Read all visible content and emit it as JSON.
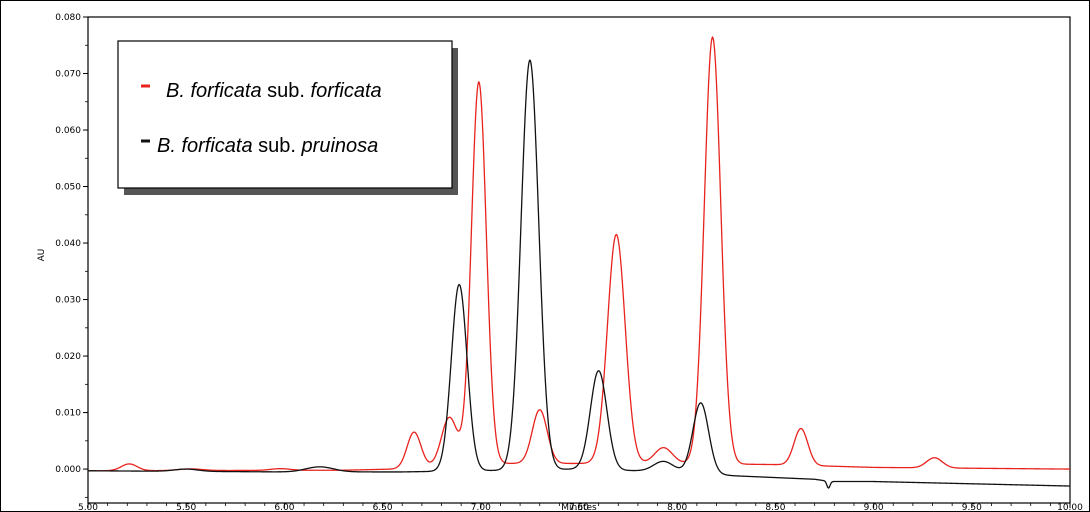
{
  "chart_data": {
    "type": "line",
    "title": "",
    "xlabel": "Minutes",
    "ylabel": "AU",
    "xlim": [
      5.0,
      10.0
    ],
    "ylim": [
      -0.006,
      0.08
    ],
    "x_ticks": [
      "5.00",
      "5.50",
      "6.00",
      "6.50",
      "7.00",
      "7.50",
      "8.00",
      "8.50",
      "9.00",
      "9.50",
      "10.00"
    ],
    "y_ticks": [
      "0.000",
      "0.010",
      "0.020",
      "0.030",
      "0.040",
      "0.050",
      "0.060",
      "0.070",
      "0.080"
    ],
    "grid": false,
    "legend_position": "top-left",
    "legend": [
      {
        "prefix": "B. forficata",
        "mid": " sub. ",
        "suffix": "forficata",
        "color": "#e8231e"
      },
      {
        "prefix": "B. forficata",
        "mid": " sub. ",
        "suffix": "pruinosa",
        "color": "#111111"
      }
    ],
    "series": [
      {
        "color": "#e8231e",
        "baseline": [
          [
            5.0,
            -0.0003
          ],
          [
            6.3,
            -0.0002
          ],
          [
            6.55,
            0.0
          ],
          [
            7.0,
            0.001
          ],
          [
            8.0,
            0.001
          ],
          [
            8.5,
            0.0008
          ],
          [
            9.0,
            0.0003
          ],
          [
            10.0,
            0.0
          ]
        ],
        "peaks": [
          {
            "rt": 5.21,
            "h": 0.0012,
            "w": 0.04
          },
          {
            "rt": 5.52,
            "h": 0.0003,
            "w": 0.06
          },
          {
            "rt": 5.98,
            "h": 0.0003,
            "w": 0.05
          },
          {
            "rt": 6.66,
            "h": 0.0063,
            "w": 0.035
          },
          {
            "rt": 6.84,
            "h": 0.0085,
            "w": 0.04
          },
          {
            "rt": 6.99,
            "h": 0.0675,
            "w": 0.038
          },
          {
            "rt": 7.3,
            "h": 0.0095,
            "w": 0.038
          },
          {
            "rt": 7.69,
            "h": 0.0405,
            "w": 0.045
          },
          {
            "rt": 7.93,
            "h": 0.0028,
            "w": 0.045
          },
          {
            "rt": 8.18,
            "h": 0.0755,
            "w": 0.042
          },
          {
            "rt": 8.63,
            "h": 0.0065,
            "w": 0.035
          },
          {
            "rt": 9.31,
            "h": 0.0018,
            "w": 0.04
          }
        ]
      },
      {
        "color": "#111111",
        "baseline": [
          [
            5.0,
            -0.0003
          ],
          [
            6.0,
            -0.0005
          ],
          [
            6.6,
            -0.0005
          ],
          [
            7.5,
            0.0
          ],
          [
            8.0,
            -0.0005
          ],
          [
            8.3,
            -0.0012
          ],
          [
            8.7,
            -0.0018
          ],
          [
            8.78,
            -0.0022
          ],
          [
            9.0,
            -0.0022
          ],
          [
            10.0,
            -0.003
          ]
        ],
        "peaks": [
          {
            "rt": 5.5,
            "h": 0.0004,
            "w": 0.06
          },
          {
            "rt": 6.18,
            "h": 0.0009,
            "w": 0.07
          },
          {
            "rt": 6.89,
            "h": 0.033,
            "w": 0.04
          },
          {
            "rt": 7.25,
            "h": 0.0725,
            "w": 0.045
          },
          {
            "rt": 7.6,
            "h": 0.0175,
            "w": 0.042
          },
          {
            "rt": 7.93,
            "h": 0.0018,
            "w": 0.05
          },
          {
            "rt": 8.12,
            "h": 0.0125,
            "w": 0.04
          },
          {
            "rt": 8.77,
            "h": -0.0012,
            "w": 0.008
          }
        ]
      }
    ]
  }
}
